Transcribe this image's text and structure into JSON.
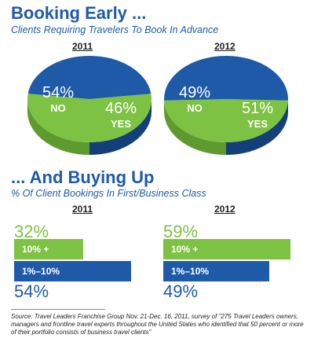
{
  "header": {
    "title": "Booking Early ...",
    "subtitle": "Clients Requiring Travelers To Book In Advance"
  },
  "section2": {
    "title": "... And Buying Up",
    "subtitle": "% Of Client Bookings In First/Business Class"
  },
  "source_text": "Source: Travel Leaders Franchise Group Nov. 21-Dec. 16, 2011, survey of \"275 Travel Leaders owners, managers and frontline travel experts throughout the United States who identified that 50 percent or more of their portfolio consists of business travel clients\"",
  "colors": {
    "green": "#7dc242",
    "blue": "#1e5aa8",
    "green_side": "#5f9a2e",
    "blue_side": "#143f78"
  },
  "chart_data": [
    {
      "type": "pie",
      "title": "2011",
      "slices": [
        {
          "label": "NO",
          "value": 54,
          "display": "54%",
          "color": "#7dc242"
        },
        {
          "label": "YES",
          "value": 46,
          "display": "46%",
          "color": "#1e5aa8"
        }
      ]
    },
    {
      "type": "pie",
      "title": "2012",
      "slices": [
        {
          "label": "NO",
          "value": 49,
          "display": "49%",
          "color": "#7dc242"
        },
        {
          "label": "YES",
          "value": 51,
          "display": "51%",
          "color": "#1e5aa8"
        }
      ]
    },
    {
      "type": "bar",
      "title": "2011",
      "categories": [
        "10% +",
        "1%–10%"
      ],
      "values": [
        32,
        54
      ],
      "value_labels": [
        "32%",
        "54%"
      ],
      "colors": [
        "#7dc242",
        "#1e5aa8"
      ]
    },
    {
      "type": "bar",
      "title": "2012",
      "categories": [
        "10% +",
        "1%–10%"
      ],
      "values": [
        59,
        49
      ],
      "value_labels": [
        "59%",
        "49%"
      ],
      "colors": [
        "#7dc242",
        "#1e5aa8"
      ]
    }
  ]
}
